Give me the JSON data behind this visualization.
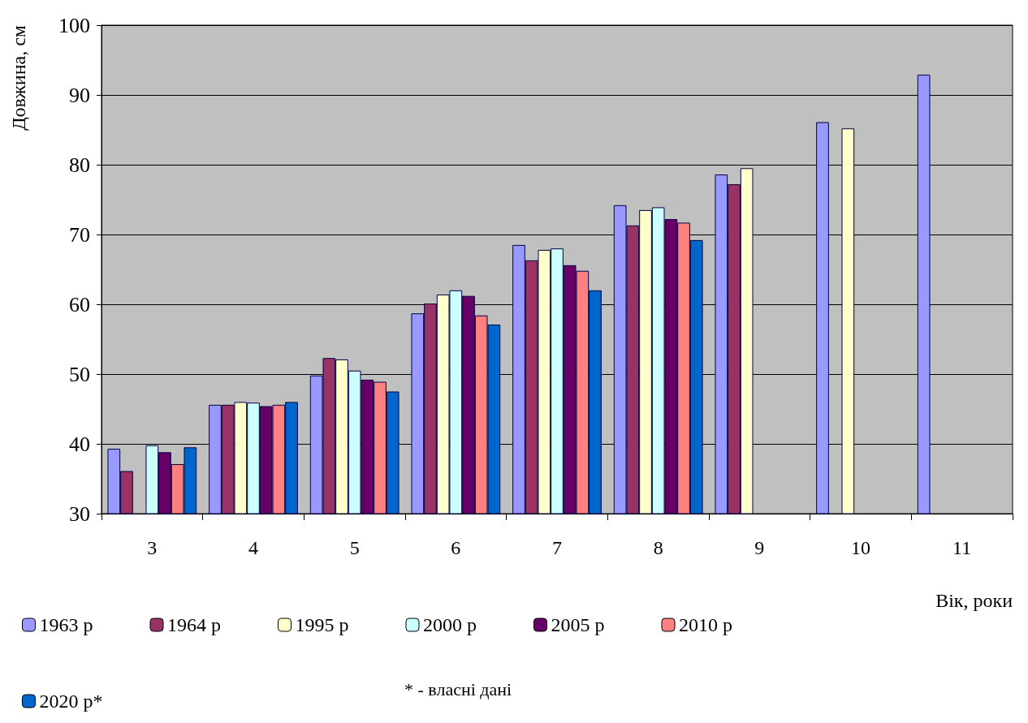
{
  "chart_data": {
    "type": "bar",
    "ylabel": "Довжина, см",
    "xlabel": "Вік, роки",
    "categories": [
      "3",
      "4",
      "5",
      "6",
      "7",
      "8",
      "9",
      "10",
      "11"
    ],
    "series": [
      {
        "name": "1963 р",
        "color": "#9999ff",
        "values": [
          39.3,
          45.6,
          49.8,
          58.7,
          68.5,
          74.2,
          78.6,
          86.1,
          92.9
        ]
      },
      {
        "name": "1964 р",
        "color": "#993366",
        "values": [
          36.1,
          45.6,
          52.3,
          60.1,
          66.3,
          71.3,
          77.2,
          null,
          null
        ]
      },
      {
        "name": "1995 р",
        "color": "#ffffcc",
        "values": [
          null,
          46.0,
          52.1,
          61.4,
          67.8,
          73.5,
          79.5,
          85.2,
          null
        ]
      },
      {
        "name": "2000 р",
        "color": "#ccffff",
        "values": [
          39.8,
          45.9,
          50.5,
          62.0,
          68.0,
          73.9,
          null,
          null,
          null
        ]
      },
      {
        "name": "2005 р",
        "color": "#660066",
        "values": [
          38.8,
          45.4,
          49.2,
          61.2,
          65.6,
          72.2,
          null,
          null,
          null
        ]
      },
      {
        "name": "2010 р",
        "color": "#ff8080",
        "values": [
          37.1,
          45.6,
          48.9,
          58.4,
          64.8,
          71.7,
          null,
          null,
          null
        ]
      },
      {
        "name": "2020 р*",
        "color": "#0066cc",
        "values": [
          39.5,
          46.0,
          47.5,
          57.1,
          62.0,
          69.2,
          null,
          null,
          null
        ]
      }
    ],
    "ylim": [
      30,
      100
    ],
    "yticks": [
      30,
      40,
      50,
      60,
      70,
      80,
      90,
      100
    ],
    "grid": "y",
    "legend": "bottom left",
    "annotations": [
      "* - власні дані"
    ]
  }
}
